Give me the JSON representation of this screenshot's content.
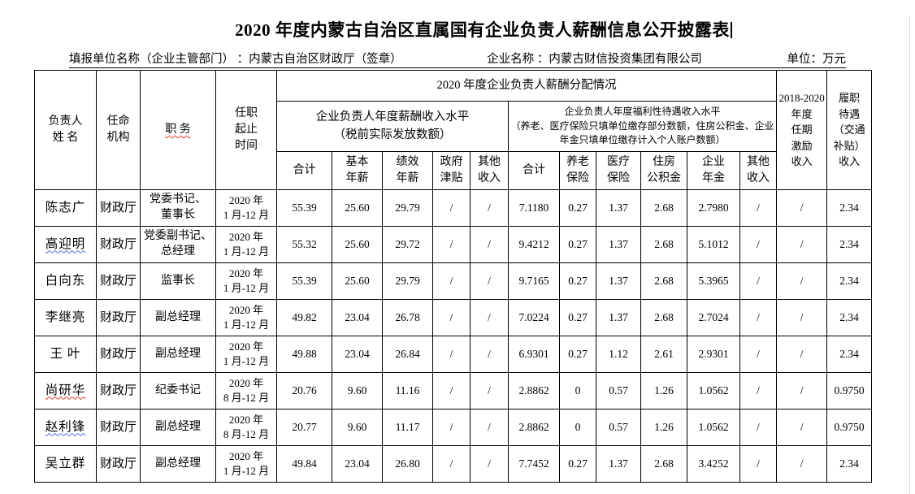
{
  "page": {
    "title": "2020 年度内蒙古自治区直属国有企业负责人薪酬信息公开披露表",
    "report_unit_label": "填报单位名称（企业主管部门） ：内蒙古自治区财政厅（签章）",
    "company_label": "企业名称 ：内蒙古财信投资集团有限公司",
    "unit_label": "单位：万元"
  },
  "table": {
    "headers": {
      "name": "负责人\n姓  名",
      "authority": "任命\n机构",
      "position": "职  务",
      "term": "任职\n起止\n时间",
      "distribution_group": "2020 年度企业负责人薪酬分配情况",
      "salary_group": "企业负责人年度薪酬收入水平\n（税前实际发放数额）",
      "welfare_group": "企业负责人年度福利性待遇收入水平\n（养老、医疗保险只填单位缴存部分数额，住房公积金、企业年金只填单位缴存计入个人账户数额）",
      "salary_cols": [
        "合计",
        "基本\n年薪",
        "绩效\n年薪",
        "政府\n津贴",
        "其他\n收入"
      ],
      "welfare_cols": [
        "合计",
        "养老\n保险",
        "医疗\n保险",
        "住房\n公积金",
        "企业\n年金",
        "其他\n收入"
      ],
      "term_incentive": "2018-2020\n年度\n任期\n激励\n收入",
      "duty_allowance": "履职\n待遇\n（交通\n补贴）\n收入"
    },
    "rows": [
      {
        "name": "陈志广",
        "name_underline": "none",
        "authority": "财政厅",
        "position": "党委书记、\n董事长",
        "term": "2020 年\n1 月-12 月",
        "values": [
          "55.39",
          "25.60",
          "29.79",
          "/",
          "/",
          "7.1180",
          "0.27",
          "1.37",
          "2.68",
          "2.7980",
          "/",
          "/",
          "2.34"
        ]
      },
      {
        "name": "高迎明",
        "name_underline": "blue",
        "authority": "财政厅",
        "position": "党委副书记、\n总经理",
        "term": "2020 年\n1 月-12 月",
        "values": [
          "55.32",
          "25.60",
          "29.72",
          "/",
          "/",
          "9.4212",
          "0.27",
          "1.37",
          "2.68",
          "5.1012",
          "/",
          "/",
          "2.34"
        ]
      },
      {
        "name": "白向东",
        "name_underline": "none",
        "authority": "财政厅",
        "position": "监事长",
        "term": "2020 年\n1 月-12 月",
        "values": [
          "55.39",
          "25.60",
          "29.79",
          "/",
          "/",
          "9.7165",
          "0.27",
          "1.37",
          "2.68",
          "5.3965",
          "/",
          "/",
          "2.34"
        ]
      },
      {
        "name": "李继亮",
        "name_underline": "none",
        "authority": "财政厅",
        "position": "副总经理",
        "term": "2020 年\n1 月-12 月",
        "values": [
          "49.82",
          "23.04",
          "26.78",
          "/",
          "/",
          "7.0224",
          "0.27",
          "1.37",
          "2.68",
          "2.7024",
          "/",
          "/",
          "2.34"
        ]
      },
      {
        "name": "王  叶",
        "name_underline": "none",
        "authority": "财政厅",
        "position": "副总经理",
        "term": "2020 年\n1 月-12 月",
        "values": [
          "49.88",
          "23.04",
          "26.84",
          "/",
          "/",
          "6.9301",
          "0.27",
          "1.12",
          "2.61",
          "2.9301",
          "/",
          "/",
          "2.34"
        ]
      },
      {
        "name": "尚研华",
        "name_underline": "red",
        "authority": "财政厅",
        "position": "纪委书记",
        "term": "2020 年\n8 月-12 月",
        "values": [
          "20.76",
          "9.60",
          "11.16",
          "/",
          "/",
          "2.8862",
          "0",
          "0.57",
          "1.26",
          "1.0562",
          "/",
          "/",
          "0.9750"
        ]
      },
      {
        "name": "赵利锋",
        "name_underline": "blue",
        "authority": "财政厅",
        "position": "副总经理",
        "term": "2020 年\n8 月-12 月",
        "values": [
          "20.77",
          "9.60",
          "11.17",
          "/",
          "/",
          "2.8862",
          "0",
          "0.57",
          "1.26",
          "1.0562",
          "/",
          "/",
          "0.9750"
        ]
      },
      {
        "name": "吴立群",
        "name_underline": "none",
        "authority": "财政厅",
        "position": "副总经理",
        "term": "2020 年\n1 月-12 月",
        "values": [
          "49.84",
          "23.04",
          "26.80",
          "/",
          "/",
          "7.7452",
          "0.27",
          "1.37",
          "2.68",
          "3.4252",
          "/",
          "/",
          "2.34"
        ]
      }
    ],
    "value_col_names": [
      "cell-salary-total",
      "cell-base-salary",
      "cell-performance-salary",
      "cell-gov-allowance",
      "cell-other-income",
      "cell-welfare-total",
      "cell-pension-insurance",
      "cell-medical-insurance",
      "cell-housing-fund",
      "cell-enterprise-annuity",
      "cell-welfare-other-income",
      "cell-term-incentive",
      "cell-duty-allowance"
    ]
  }
}
